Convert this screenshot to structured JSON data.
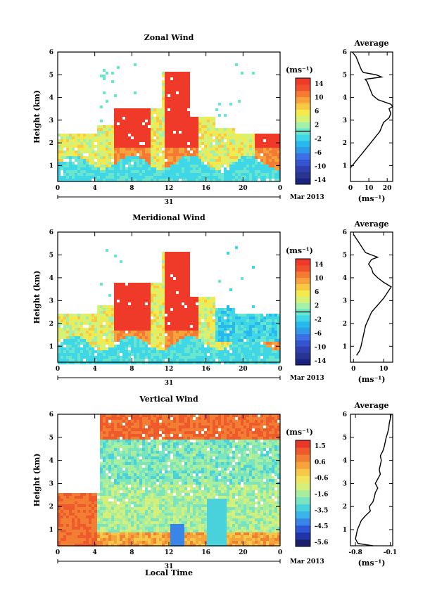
{
  "chart_data": [
    {
      "type": "heatmap",
      "title": "Zonal Wind",
      "ylabel": "Height (km)",
      "x_ticks": [
        "0",
        "4",
        "8",
        "12",
        "16",
        "20",
        "0"
      ],
      "y_ticks": [
        "1",
        "2",
        "3",
        "4",
        "5",
        "6"
      ],
      "xlim": [
        0,
        24
      ],
      "ylim": [
        0.3,
        6.0
      ],
      "date_day": "31",
      "date_month": "Mar 2013",
      "colorbar_unit": "(ms⁻¹)",
      "colorbar_ticks": [
        "14",
        "10",
        "6",
        "2",
        "-2",
        "-6",
        "-10",
        "-14"
      ],
      "colorbar_range": [
        -16,
        16
      ],
      "profile": {
        "title": "Average",
        "x_ticks": [
          "0",
          "10",
          "20"
        ],
        "xlim": [
          0,
          23
        ],
        "xlabel": "(ms⁻¹)",
        "y_ticks": [
          "1",
          "2",
          "3",
          "4",
          "5",
          "6"
        ],
        "heights": [
          0.9,
          1.1,
          1.3,
          1.5,
          1.7,
          1.9,
          2.1,
          2.3,
          2.5,
          2.7,
          2.9,
          3.1,
          3.3,
          3.5,
          3.6,
          3.7,
          3.9,
          4.1,
          4.3,
          4.5,
          4.7,
          4.8,
          4.9,
          5.0,
          5.1,
          5.2,
          5.4,
          5.6,
          5.8,
          6.0
        ],
        "values": [
          0,
          2,
          4,
          6,
          8,
          10,
          12,
          14,
          16,
          17,
          18,
          21,
          22,
          21,
          23,
          22,
          15,
          12,
          11,
          10,
          9,
          8,
          17,
          14,
          7,
          6,
          5,
          4,
          3,
          1
        ]
      }
    },
    {
      "type": "heatmap",
      "title": "Meridional Wind",
      "ylabel": "Height (km)",
      "x_ticks": [
        "0",
        "4",
        "8",
        "12",
        "16",
        "20",
        "0"
      ],
      "y_ticks": [
        "1",
        "2",
        "3",
        "4",
        "5",
        "6"
      ],
      "xlim": [
        0,
        24
      ],
      "ylim": [
        0.3,
        6.0
      ],
      "date_day": "31",
      "date_month": "Mar 2013",
      "colorbar_unit": "(ms⁻¹)",
      "colorbar_ticks": [
        "14",
        "10",
        "6",
        "2",
        "-2",
        "-6",
        "-10",
        "-14"
      ],
      "colorbar_range": [
        -16,
        16
      ],
      "profile": {
        "title": "Average",
        "x_ticks": [
          "0",
          "10"
        ],
        "xlim": [
          -1,
          13
        ],
        "xlabel": "(ms⁻¹)",
        "y_ticks": [
          "1",
          "2",
          "3",
          "4",
          "5",
          "6"
        ],
        "heights": [
          0.6,
          0.8,
          1.0,
          1.3,
          1.6,
          1.9,
          2.2,
          2.5,
          2.8,
          3.1,
          3.3,
          3.5,
          3.6,
          3.8,
          4.0,
          4.2,
          4.4,
          4.6,
          4.8,
          4.9,
          5.0,
          5.1,
          5.3,
          5.5,
          5.7,
          5.9
        ],
        "values": [
          1,
          2,
          2.5,
          3,
          3.5,
          4,
          5,
          6,
          8,
          10,
          11,
          12,
          12.5,
          10,
          8,
          6.5,
          6,
          5,
          6,
          8,
          6,
          4,
          3,
          2,
          1,
          0
        ]
      }
    },
    {
      "type": "heatmap",
      "title": "Vertical Wind",
      "ylabel": "Height (km)",
      "xlabel": "Local Time",
      "x_ticks": [
        "0",
        "4",
        "8",
        "12",
        "16",
        "20",
        "0"
      ],
      "y_ticks": [
        "1",
        "2",
        "3",
        "4",
        "5",
        "6"
      ],
      "xlim": [
        0,
        24
      ],
      "ylim": [
        0.3,
        6.0
      ],
      "date_day": "31",
      "date_month": "Mar 2013",
      "colorbar_unit": "(ms⁻¹)",
      "colorbar_ticks": [
        "1.5",
        "0.6",
        "-0.6",
        "-1.6",
        "-3.5",
        "-4.5",
        "-5.6"
      ],
      "colorbar_range": [
        -6,
        2
      ],
      "profile": {
        "title": "Average",
        "x_ticks": [
          "-0.8",
          "-0.1"
        ],
        "xlim": [
          -0.9,
          -0.05
        ],
        "xlabel": "(ms⁻¹)",
        "y_ticks": [
          "1",
          "2",
          "3",
          "4",
          "5",
          "6"
        ],
        "heights": [
          0.3,
          0.4,
          0.6,
          0.8,
          1.0,
          1.2,
          1.4,
          1.6,
          1.8,
          2.0,
          2.2,
          2.4,
          2.6,
          2.8,
          3.0,
          3.2,
          3.4,
          3.6,
          3.8,
          4.0,
          4.2,
          4.4,
          4.6,
          4.8,
          5.0,
          5.2,
          5.4,
          5.6,
          5.8,
          6.0
        ],
        "values": [
          -0.45,
          -0.75,
          -0.8,
          -0.78,
          -0.76,
          -0.72,
          -0.68,
          -0.6,
          -0.5,
          -0.52,
          -0.45,
          -0.42,
          -0.4,
          -0.35,
          -0.4,
          -0.35,
          -0.3,
          -0.32,
          -0.3,
          -0.28,
          -0.3,
          -0.25,
          -0.22,
          -0.2,
          -0.18,
          -0.15,
          -0.13,
          -0.12,
          -0.1,
          -0.08
        ]
      }
    }
  ]
}
